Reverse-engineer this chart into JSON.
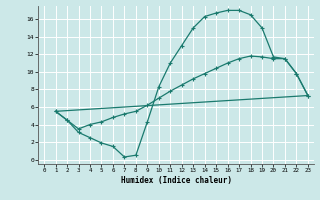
{
  "xlabel": "Humidex (Indice chaleur)",
  "xlim": [
    -0.5,
    23.5
  ],
  "ylim": [
    -0.5,
    17.5
  ],
  "xticks": [
    0,
    1,
    2,
    3,
    4,
    5,
    6,
    7,
    8,
    9,
    10,
    11,
    12,
    13,
    14,
    15,
    16,
    17,
    18,
    19,
    20,
    21,
    22,
    23
  ],
  "yticks": [
    0,
    2,
    4,
    6,
    8,
    10,
    12,
    14,
    16
  ],
  "bg_color": "#cce8e8",
  "line_color": "#1a7a6e",
  "grid_color": "#b0d4d4",
  "line1_x": [
    1,
    2,
    3,
    4,
    5,
    6,
    7,
    8,
    9,
    10,
    11,
    12,
    13,
    14,
    15,
    16,
    17,
    18,
    19,
    20,
    21,
    22,
    23
  ],
  "line1_y": [
    5.5,
    4.5,
    3.1,
    2.5,
    1.9,
    1.5,
    0.3,
    0.5,
    4.3,
    8.3,
    11.0,
    13.0,
    15.0,
    16.3,
    16.7,
    17.0,
    17.0,
    16.5,
    15.0,
    11.7,
    11.5,
    9.8,
    7.3
  ],
  "line2_x": [
    1,
    2,
    3,
    4,
    5,
    6,
    7,
    8,
    9,
    10,
    11,
    12,
    13,
    14,
    15,
    16,
    17,
    18,
    19,
    20,
    21,
    22,
    23
  ],
  "line2_y": [
    5.5,
    4.5,
    3.5,
    4.0,
    4.3,
    4.8,
    5.2,
    5.5,
    6.2,
    7.0,
    7.8,
    8.5,
    9.2,
    9.8,
    10.4,
    11.0,
    11.5,
    11.8,
    11.7,
    11.5,
    11.5,
    9.8,
    7.3
  ],
  "line3_x": [
    1,
    23
  ],
  "line3_y": [
    5.5,
    7.3
  ]
}
